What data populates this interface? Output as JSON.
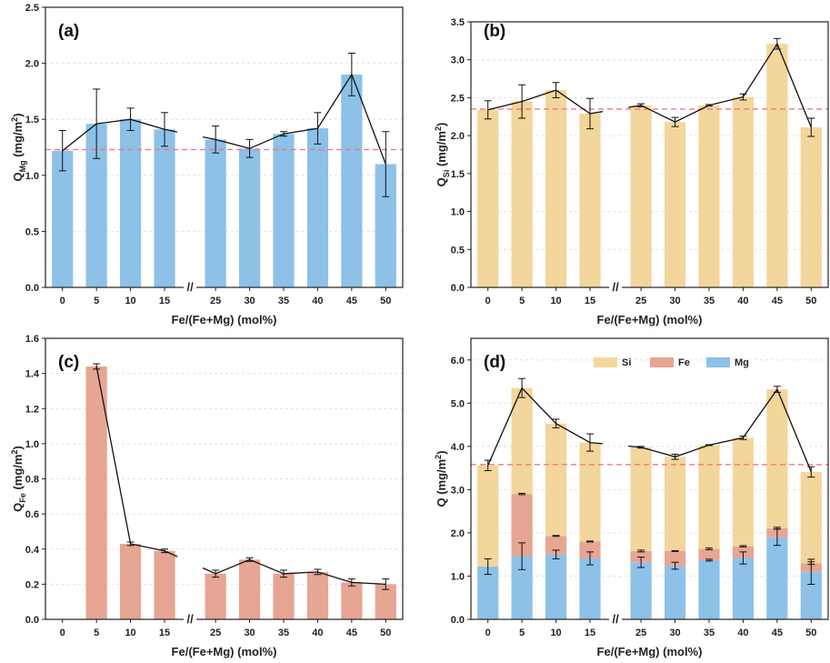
{
  "figure": {
    "x_tick_labels": [
      "0",
      "5",
      "10",
      "15",
      "25",
      "30",
      "35",
      "40",
      "45",
      "50"
    ],
    "xlabel": "Fe/(Fe+Mg) (mol%)",
    "axis_break_mark": "//"
  },
  "chart_data": [
    {
      "type": "bar",
      "panel_label": "(a)",
      "ylabel_main": "Q",
      "ylabel_sub": "Mg",
      "ylabel_unit": " (mg/m",
      "ylabel_sup": "2",
      "ylabel_close": ")",
      "categories": [
        "0",
        "5",
        "10",
        "15",
        "25",
        "30",
        "35",
        "40",
        "45",
        "50"
      ],
      "values": [
        1.22,
        1.46,
        1.5,
        1.41,
        1.32,
        1.24,
        1.37,
        1.42,
        1.9,
        1.1
      ],
      "errors": [
        0.18,
        0.31,
        0.1,
        0.15,
        0.12,
        0.08,
        0.02,
        0.14,
        0.19,
        0.29
      ],
      "ylim": [
        0,
        2.5
      ],
      "yticks": [
        0.0,
        0.5,
        1.0,
        1.5,
        2.0,
        2.5
      ],
      "ytick_labels": [
        "0.0",
        "0.5",
        "1.0",
        "1.5",
        "2.0",
        "2.5"
      ],
      "reference_line": 1.23,
      "bar_color": "#8dc1e8",
      "line_break_after_index": 3
    },
    {
      "type": "bar",
      "panel_label": "(b)",
      "ylabel_main": "Q",
      "ylabel_sub": "Si",
      "ylabel_unit": " (mg/m",
      "ylabel_sup": "2",
      "ylabel_close": ")",
      "categories": [
        "0",
        "5",
        "10",
        "15",
        "25",
        "30",
        "35",
        "40",
        "45",
        "50"
      ],
      "values": [
        2.34,
        2.45,
        2.6,
        2.29,
        2.4,
        2.18,
        2.4,
        2.51,
        3.21,
        2.11
      ],
      "errors": [
        0.12,
        0.22,
        0.1,
        0.2,
        0.02,
        0.06,
        0.01,
        0.04,
        0.07,
        0.12
      ],
      "ylim": [
        0,
        3.5
      ],
      "yticks": [
        0.0,
        0.5,
        1.0,
        1.5,
        2.0,
        2.5,
        3.0,
        3.5
      ],
      "ytick_labels": [
        "0.0",
        "0.5",
        "1.0",
        "1.5",
        "2.0",
        "2.5",
        "3.0",
        "3.5"
      ],
      "reference_line": 2.35,
      "bar_color": "#f3d69b",
      "line_break_after_index": 3
    },
    {
      "type": "bar",
      "panel_label": "(c)",
      "ylabel_main": "Q",
      "ylabel_sub": "Fe",
      "ylabel_unit": " (mg/m",
      "ylabel_sup": "2",
      "ylabel_close": ")",
      "categories": [
        "0",
        "5",
        "10",
        "15",
        "25",
        "30",
        "35",
        "40",
        "45",
        "50"
      ],
      "values": [
        0,
        1.44,
        0.43,
        0.39,
        0.26,
        0.34,
        0.26,
        0.27,
        0.21,
        0.2
      ],
      "errors": [
        0,
        0.015,
        0.01,
        0.01,
        0.02,
        0.01,
        0.02,
        0.015,
        0.02,
        0.03
      ],
      "ylim": [
        0,
        1.6
      ],
      "yticks": [
        0.0,
        0.2,
        0.4,
        0.6,
        0.8,
        1.0,
        1.2,
        1.4,
        1.6
      ],
      "ytick_labels": [
        "0.0",
        "0.2",
        "0.4",
        "0.6",
        "0.8",
        "1.0",
        "1.2",
        "1.4",
        "1.6"
      ],
      "reference_line": null,
      "bar_color": "#e7a593",
      "line_start_index": 1,
      "line_break_after_index": 3
    },
    {
      "type": "stacked_bar",
      "panel_label": "(d)",
      "ylabel_main": "Q",
      "ylabel_sub": "",
      "ylabel_unit": " (mg/m",
      "ylabel_sup": "2",
      "ylabel_close": ")",
      "categories": [
        "0",
        "5",
        "10",
        "15",
        "25",
        "30",
        "35",
        "40",
        "45",
        "50"
      ],
      "series": [
        {
          "name": "Mg",
          "color": "#8dc1e8",
          "values": [
            1.22,
            1.46,
            1.5,
            1.41,
            1.32,
            1.24,
            1.37,
            1.42,
            1.9,
            1.1
          ],
          "errors": [
            0.18,
            0.31,
            0.1,
            0.15,
            0.12,
            0.08,
            0.02,
            0.14,
            0.19,
            0.29
          ]
        },
        {
          "name": "Fe",
          "color": "#e7a593",
          "values": [
            0,
            1.44,
            0.43,
            0.39,
            0.26,
            0.34,
            0.26,
            0.27,
            0.21,
            0.2
          ],
          "errors": [
            0,
            0.015,
            0.01,
            0.01,
            0.02,
            0.01,
            0.02,
            0.015,
            0.02,
            0.03
          ]
        },
        {
          "name": "Si",
          "color": "#f3d69b",
          "values": [
            2.34,
            2.45,
            2.6,
            2.29,
            2.4,
            2.18,
            2.4,
            2.51,
            3.21,
            2.11
          ],
          "errors": [
            0.12,
            0.22,
            0.1,
            0.2,
            0.02,
            0.06,
            0.01,
            0.04,
            0.07,
            0.12
          ]
        }
      ],
      "totals": [
        3.56,
        5.35,
        4.53,
        4.09,
        3.98,
        3.76,
        4.03,
        4.2,
        5.32,
        3.41
      ],
      "total_errors": [
        0.12,
        0.22,
        0.1,
        0.2,
        0.02,
        0.06,
        0.01,
        0.04,
        0.07,
        0.12
      ],
      "legend": [
        "Si",
        "Fe",
        "Mg"
      ],
      "legend_position": "top-center",
      "ylim": [
        0,
        6.5
      ],
      "yticks": [
        0.0,
        1.0,
        2.0,
        3.0,
        4.0,
        5.0,
        6.0
      ],
      "ytick_labels": [
        "0.0",
        "1.0",
        "2.0",
        "3.0",
        "4.0",
        "5.0",
        "6.0"
      ],
      "reference_line": 3.58,
      "line_break_after_index": 3
    }
  ]
}
